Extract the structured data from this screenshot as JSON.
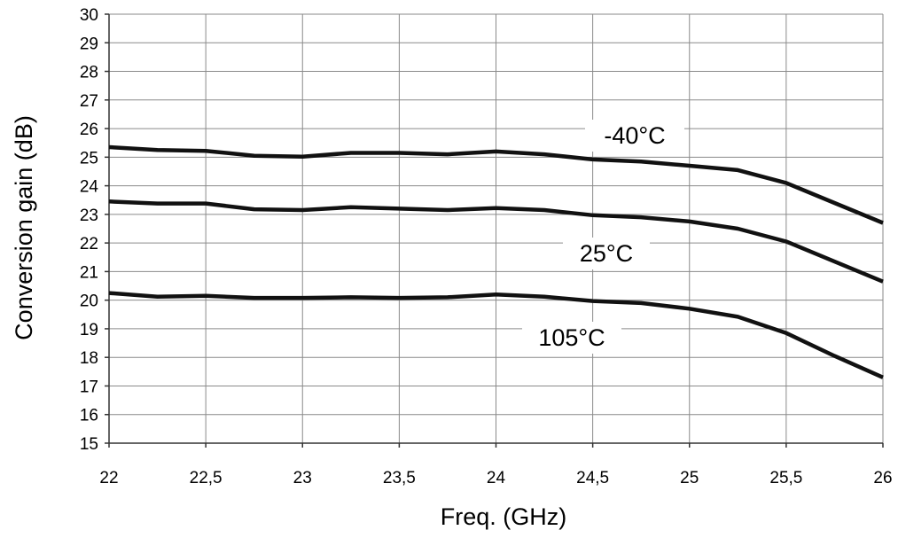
{
  "chart_data": {
    "type": "line",
    "xlabel": "Freq. (GHz)",
    "ylabel": "Conversion gain (dB)",
    "xlim": [
      22,
      26
    ],
    "ylim": [
      15,
      30
    ],
    "grid": true,
    "x": [
      22,
      22.25,
      22.5,
      22.75,
      23,
      23.25,
      23.5,
      23.75,
      24,
      24.25,
      24.5,
      24.75,
      25,
      25.25,
      25.5,
      25.75,
      26
    ],
    "x_tick_labels": [
      "22",
      "22,5",
      "23",
      "23,5",
      "24",
      "24,5",
      "25",
      "25,5",
      "26"
    ],
    "y_tick_labels": [
      "15",
      "16",
      "17",
      "18",
      "19",
      "20",
      "21",
      "22",
      "23",
      "24",
      "25",
      "26",
      "27",
      "28",
      "29",
      "30"
    ],
    "series": [
      {
        "name": "-40°C",
        "values": [
          25.35,
          25.25,
          25.22,
          25.05,
          25.02,
          25.15,
          25.15,
          25.1,
          25.2,
          25.1,
          24.92,
          24.85,
          24.7,
          24.55,
          24.1,
          23.4,
          22.7
        ]
      },
      {
        "name": "25°C",
        "values": [
          23.45,
          23.38,
          23.38,
          23.18,
          23.15,
          23.25,
          23.2,
          23.15,
          23.22,
          23.15,
          22.97,
          22.9,
          22.75,
          22.5,
          22.05,
          21.35,
          20.65
        ]
      },
      {
        "name": "105°C",
        "values": [
          20.25,
          20.12,
          20.15,
          20.08,
          20.08,
          20.1,
          20.08,
          20.1,
          20.2,
          20.12,
          19.97,
          19.9,
          19.7,
          19.42,
          18.85,
          18.05,
          17.3
        ]
      }
    ]
  }
}
